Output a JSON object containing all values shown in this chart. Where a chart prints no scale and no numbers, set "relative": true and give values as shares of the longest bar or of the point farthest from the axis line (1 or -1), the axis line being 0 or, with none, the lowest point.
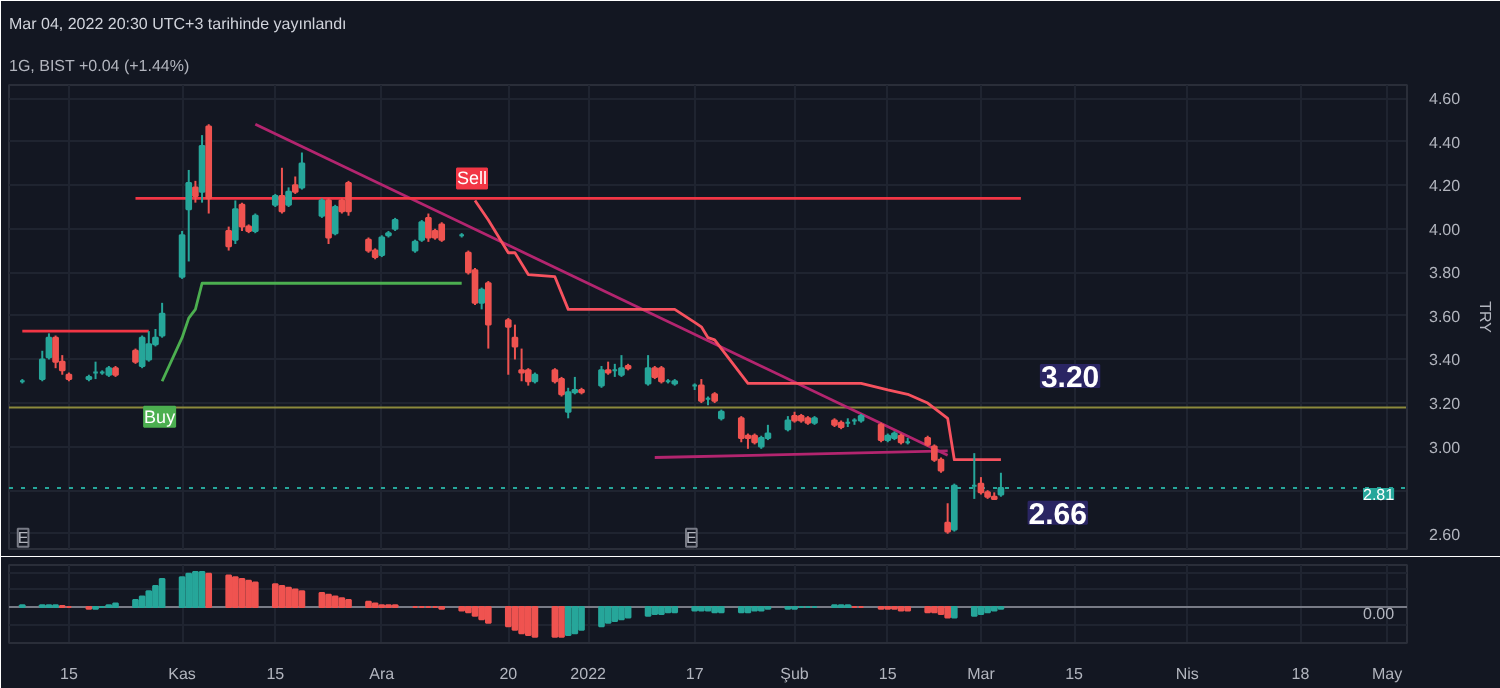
{
  "chart_data": [
    {
      "type": "candlestick",
      "title": "Mar 04, 2022 20:30 UTC+3 tarihinde yayınlandı",
      "subtitle": "1G, BIST +0.04 (+1.44%)",
      "ylabel": "TRY",
      "x": [
        "2021-10-08",
        "2021-10-11",
        "2021-10-12",
        "2021-10-13",
        "2021-10-14",
        "2021-10-15",
        "2021-10-18",
        "2021-10-19",
        "2021-10-20",
        "2021-10-21",
        "2021-10-22",
        "2021-10-25",
        "2021-10-26",
        "2021-10-27",
        "2021-10-28",
        "2021-10-29",
        "2021-11-01",
        "2021-11-02",
        "2021-11-03",
        "2021-11-04",
        "2021-11-05",
        "2021-11-08",
        "2021-11-09",
        "2021-11-10",
        "2021-11-11",
        "2021-11-12",
        "2021-11-15",
        "2021-11-16",
        "2021-11-17",
        "2021-11-18",
        "2021-11-19",
        "2021-11-22",
        "2021-11-23",
        "2021-11-24",
        "2021-11-25",
        "2021-11-26",
        "2021-11-29",
        "2021-11-30",
        "2021-12-01",
        "2021-12-02",
        "2021-12-03",
        "2021-12-06",
        "2021-12-07",
        "2021-12-08",
        "2021-12-09",
        "2021-12-10",
        "2021-12-13",
        "2021-12-14",
        "2021-12-15",
        "2021-12-16",
        "2021-12-17",
        "2021-12-20",
        "2021-12-21",
        "2021-12-22",
        "2021-12-23",
        "2021-12-24",
        "2021-12-27",
        "2021-12-28",
        "2021-12-29",
        "2021-12-30",
        "2021-12-31",
        "2022-01-03",
        "2022-01-04",
        "2022-01-05",
        "2022-01-06",
        "2022-01-07",
        "2022-01-10",
        "2022-01-11",
        "2022-01-12",
        "2022-01-13",
        "2022-01-14",
        "2022-01-17",
        "2022-01-18",
        "2022-01-19",
        "2022-01-20",
        "2022-01-21",
        "2022-01-24",
        "2022-01-25",
        "2022-01-26",
        "2022-01-27",
        "2022-01-28",
        "2022-01-31",
        "2022-02-01",
        "2022-02-02",
        "2022-02-03",
        "2022-02-04",
        "2022-02-07",
        "2022-02-08",
        "2022-02-09",
        "2022-02-10",
        "2022-02-11",
        "2022-02-14",
        "2022-02-15",
        "2022-02-16",
        "2022-02-17",
        "2022-02-18",
        "2022-02-21",
        "2022-02-22",
        "2022-02-23",
        "2022-02-24",
        "2022-02-25",
        "2022-02-28",
        "2022-03-01",
        "2022-03-02",
        "2022-03-03",
        "2022-03-04"
      ],
      "ohlc": [
        [
          3.3,
          3.31,
          3.29,
          3.3
        ],
        [
          3.31,
          3.44,
          3.3,
          3.4
        ],
        [
          3.41,
          3.52,
          3.4,
          3.5
        ],
        [
          3.5,
          3.51,
          3.36,
          3.39
        ],
        [
          3.39,
          3.42,
          3.33,
          3.35
        ],
        [
          3.33,
          3.34,
          3.3,
          3.31
        ],
        [
          3.31,
          3.33,
          3.3,
          3.32
        ],
        [
          3.34,
          3.39,
          3.31,
          3.34
        ],
        [
          3.34,
          3.35,
          3.33,
          3.34
        ],
        [
          3.33,
          3.37,
          3.32,
          3.36
        ],
        [
          3.36,
          3.37,
          3.32,
          3.33
        ],
        [
          3.44,
          3.45,
          3.38,
          3.39
        ],
        [
          3.37,
          3.51,
          3.36,
          3.5
        ],
        [
          3.4,
          3.53,
          3.39,
          3.47
        ],
        [
          3.47,
          3.54,
          3.46,
          3.5
        ],
        [
          3.51,
          3.66,
          3.5,
          3.61
        ],
        [
          3.78,
          3.99,
          3.77,
          3.97
        ],
        [
          4.09,
          4.27,
          3.85,
          4.21
        ],
        [
          4.19,
          4.22,
          4.12,
          4.15
        ],
        [
          4.17,
          4.43,
          4.12,
          4.38
        ],
        [
          4.47,
          4.48,
          4.07,
          4.14
        ],
        [
          3.99,
          4.01,
          3.9,
          3.92
        ],
        [
          3.95,
          4.13,
          3.93,
          4.09
        ],
        [
          4.11,
          4.12,
          3.99,
          4.01
        ],
        [
          4.01,
          4.02,
          3.98,
          3.99
        ],
        [
          3.99,
          4.07,
          3.98,
          4.06
        ],
        [
          4.11,
          4.16,
          4.1,
          4.15
        ],
        [
          4.15,
          4.28,
          4.07,
          4.08
        ],
        [
          4.11,
          4.19,
          4.1,
          4.17
        ],
        [
          4.2,
          4.24,
          4.16,
          4.17
        ],
        [
          4.19,
          4.35,
          4.18,
          4.3
        ],
        [
          4.06,
          4.14,
          4.05,
          4.13
        ],
        [
          4.13,
          4.14,
          3.93,
          3.96
        ],
        [
          3.98,
          4.11,
          3.97,
          4.1
        ],
        [
          4.13,
          4.14,
          4.07,
          4.08
        ],
        [
          4.21,
          4.22,
          4.06,
          4.08
        ],
        [
          3.95,
          3.96,
          3.89,
          3.9
        ],
        [
          3.9,
          3.91,
          3.86,
          3.87
        ],
        [
          3.88,
          3.97,
          3.87,
          3.96
        ],
        [
          3.97,
          3.99,
          3.96,
          3.98
        ],
        [
          4.0,
          4.05,
          3.99,
          4.04
        ],
        [
          3.9,
          3.95,
          3.89,
          3.94
        ],
        [
          3.95,
          4.04,
          3.94,
          4.03
        ],
        [
          4.05,
          4.07,
          3.94,
          3.96
        ],
        [
          3.99,
          4.0,
          3.95,
          3.96
        ],
        [
          4.02,
          4.03,
          3.94,
          3.95
        ],
        [
          3.97,
          3.98,
          3.96,
          3.97
        ],
        [
          3.89,
          3.9,
          3.79,
          3.8
        ],
        [
          3.81,
          3.82,
          3.65,
          3.66
        ],
        [
          3.66,
          3.73,
          3.63,
          3.72
        ],
        [
          3.75,
          3.76,
          3.45,
          3.56
        ],
        [
          3.58,
          3.59,
          3.33,
          3.55
        ],
        [
          3.5,
          3.56,
          3.4,
          3.46
        ],
        [
          3.35,
          3.45,
          3.3,
          3.34
        ],
        [
          3.35,
          3.36,
          3.28,
          3.3
        ],
        [
          3.3,
          3.34,
          3.29,
          3.33
        ],
        [
          3.35,
          3.36,
          3.29,
          3.3
        ],
        [
          3.31,
          3.32,
          3.23,
          3.24
        ],
        [
          3.16,
          3.27,
          3.13,
          3.25
        ],
        [
          3.25,
          3.32,
          3.24,
          3.26
        ],
        [
          3.26,
          3.27,
          3.24,
          3.25
        ],
        [
          3.28,
          3.37,
          3.27,
          3.35
        ],
        [
          3.35,
          3.39,
          3.33,
          3.34
        ],
        [
          3.35,
          3.38,
          3.32,
          3.35
        ],
        [
          3.33,
          3.42,
          3.32,
          3.36
        ],
        [
          3.37,
          3.38,
          3.35,
          3.36
        ],
        [
          3.29,
          3.42,
          3.28,
          3.36
        ],
        [
          3.36,
          3.37,
          3.31,
          3.32
        ],
        [
          3.36,
          3.37,
          3.29,
          3.3
        ],
        [
          3.3,
          3.31,
          3.29,
          3.3
        ],
        [
          3.29,
          3.31,
          3.28,
          3.3
        ],
        [
          3.28,
          3.29,
          3.26,
          3.28
        ],
        [
          3.28,
          3.31,
          3.2,
          3.21
        ],
        [
          3.22,
          3.23,
          3.19,
          3.22
        ],
        [
          3.24,
          3.25,
          3.2,
          3.21
        ],
        [
          3.13,
          3.17,
          3.12,
          3.16
        ],
        [
          3.13,
          3.14,
          3.02,
          3.04
        ],
        [
          3.05,
          3.06,
          2.99,
          3.04
        ],
        [
          3.05,
          3.06,
          3.01,
          3.02
        ],
        [
          3.0,
          3.05,
          2.99,
          3.04
        ],
        [
          3.04,
          3.1,
          3.03,
          3.06
        ],
        [
          3.08,
          3.14,
          3.07,
          3.12
        ],
        [
          3.14,
          3.16,
          3.11,
          3.12
        ],
        [
          3.14,
          3.15,
          3.11,
          3.12
        ],
        [
          3.13,
          3.14,
          3.1,
          3.11
        ],
        [
          3.11,
          3.14,
          3.1,
          3.13
        ],
        [
          3.12,
          3.13,
          3.09,
          3.1
        ],
        [
          3.11,
          3.12,
          3.08,
          3.09
        ],
        [
          3.11,
          3.13,
          3.09,
          3.11
        ],
        [
          3.12,
          3.13,
          3.1,
          3.12
        ],
        [
          3.12,
          3.15,
          3.11,
          3.14
        ],
        [
          3.1,
          3.11,
          3.02,
          3.03
        ],
        [
          3.03,
          3.06,
          3.02,
          3.05
        ],
        [
          3.04,
          3.07,
          3.03,
          3.06
        ],
        [
          3.05,
          3.06,
          3.01,
          3.02
        ],
        [
          3.02,
          3.04,
          3.01,
          3.02
        ],
        [
          3.04,
          3.05,
          3.0,
          3.01
        ],
        [
          3.0,
          3.01,
          2.93,
          2.94
        ],
        [
          2.94,
          2.95,
          2.88,
          2.89
        ],
        [
          2.65,
          2.74,
          2.6,
          2.61
        ],
        [
          2.62,
          2.83,
          2.61,
          2.82
        ],
        [
          2.82,
          2.97,
          2.76,
          2.82
        ],
        [
          2.83,
          2.86,
          2.78,
          2.79
        ],
        [
          2.79,
          2.8,
          2.76,
          2.77
        ],
        [
          2.77,
          2.79,
          2.76,
          2.76
        ],
        [
          2.78,
          2.88,
          2.77,
          2.81
        ]
      ],
      "series": [
        {
          "type": "line",
          "color": "#b3256f",
          "x": [
            "2021-11-12",
            "2022-02-24"
          ],
          "values": [
            4.48,
            2.96
          ]
        },
        {
          "type": "line",
          "color": "#b3256f",
          "x": [
            "2022-01-11",
            "2022-02-24"
          ],
          "values": [
            2.95,
            2.98
          ]
        },
        {
          "type": "line",
          "color": "#f23645",
          "x": [
            "2021-10-25",
            "2022-03-07"
          ],
          "values": [
            4.14,
            4.14
          ]
        },
        {
          "type": "line",
          "color": "#f23645",
          "x": [
            "2021-10-08",
            "2021-10-27"
          ],
          "values": [
            3.53,
            3.53
          ]
        },
        {
          "type": "line",
          "color": "#4caf50",
          "x": [
            "2021-10-29",
            "2021-11-01",
            "2021-11-02",
            "2021-11-03",
            "2021-11-04",
            "2021-12-13"
          ],
          "values": [
            3.3,
            3.5,
            3.59,
            3.63,
            3.75,
            3.75
          ]
        },
        {
          "type": "line",
          "color": "#f7525f",
          "x": [
            "2021-12-15",
            "2021-12-17",
            "2021-12-20",
            "2021-12-21",
            "2021-12-23",
            "2021-12-27",
            "2021-12-29",
            "2022-01-14",
            "2022-01-17",
            "2022-01-18",
            "2022-01-19",
            "2022-01-20",
            "2022-01-25",
            "2022-02-11",
            "2022-02-15",
            "2022-02-18",
            "2022-02-21",
            "2022-02-24",
            "2022-02-25",
            "2022-03-04"
          ],
          "values": [
            4.13,
            4.04,
            3.89,
            3.89,
            3.79,
            3.78,
            3.63,
            3.63,
            3.57,
            3.55,
            3.5,
            3.49,
            3.29,
            3.29,
            3.26,
            3.24,
            3.2,
            3.13,
            2.94,
            2.94
          ]
        }
      ],
      "ref_lines": [
        {
          "axis": "y",
          "value": 3.18,
          "color": "#8c8a3c"
        },
        {
          "axis": "y",
          "value": 2.81,
          "label": "2.81",
          "color": "#26a69a",
          "line_style": "dotted"
        }
      ],
      "annotations": [
        "E",
        "E",
        {
          "text": "Buy",
          "x": "2021-10-29",
          "y": 3.22
        },
        {
          "text": "Sell",
          "x": "2021-12-15",
          "y": 4.13
        },
        {
          "text": "3.20",
          "x": "2022-03-07",
          "y": 3.2
        },
        "2.66"
      ],
      "xlim": [
        "2021-10-06",
        "2022-05-04"
      ],
      "ylim": [
        2.53,
        4.66
      ],
      "xticks": [
        {
          "value": "2021-10-15",
          "label": null
        },
        {
          "value": "2021-11-01",
          "label": null
        },
        {
          "value": "2021-11-15",
          "label": null
        },
        {
          "value": "2021-12-01",
          "label": null
        },
        {
          "value": "2021-12-20",
          "label": null
        },
        {
          "value": "2022-01-01",
          "label": null
        },
        {
          "value": "2022-01-17",
          "label": null
        },
        {
          "value": "2022-02-01",
          "label": null
        },
        {
          "value": "2022-02-15",
          "label": null
        },
        {
          "value": "2022-03-01",
          "label": null
        },
        {
          "value": "2022-03-15",
          "label": null
        },
        {
          "value": "2022-04-01",
          "label": null
        },
        {
          "value": "2022-04-18",
          "label": null
        },
        {
          "value": "2022-05-01",
          "label": null
        }
      ],
      "yticks": [
        {
          "value": 2.6,
          "label": "2.60"
        },
        {
          "value": 2.8,
          "label": null
        },
        {
          "value": 3.0,
          "label": "3.00"
        },
        {
          "value": 3.2,
          "label": "3.20"
        },
        {
          "value": 3.4,
          "label": "3.40"
        },
        {
          "value": 3.6,
          "label": "3.60"
        },
        {
          "value": 3.8,
          "label": "3.80"
        },
        {
          "value": 4.0,
          "label": "4.00"
        },
        {
          "value": 4.2,
          "label": "4.20"
        },
        {
          "value": 4.4,
          "label": "4.40"
        },
        {
          "value": 4.6,
          "label": "4.60"
        }
      ],
      "tick_labels": "y",
      "grid": true
    },
    {
      "type": "bar",
      "relative": true,
      "x": [
        "2021-10-08",
        "2021-10-11",
        "2021-10-12",
        "2021-10-13",
        "2021-10-14",
        "2021-10-15",
        "2021-10-18",
        "2021-10-19",
        "2021-10-20",
        "2021-10-21",
        "2021-10-22",
        "2021-10-25",
        "2021-10-26",
        "2021-10-27",
        "2021-10-28",
        "2021-10-29",
        "2021-11-01",
        "2021-11-02",
        "2021-11-03",
        "2021-11-04",
        "2021-11-05",
        "2021-11-08",
        "2021-11-09",
        "2021-11-10",
        "2021-11-11",
        "2021-11-12",
        "2021-11-15",
        "2021-11-16",
        "2021-11-17",
        "2021-11-18",
        "2021-11-19",
        "2021-11-22",
        "2021-11-23",
        "2021-11-24",
        "2021-11-25",
        "2021-11-26",
        "2021-11-29",
        "2021-11-30",
        "2021-12-01",
        "2021-12-02",
        "2021-12-03",
        "2021-12-06",
        "2021-12-07",
        "2021-12-08",
        "2021-12-09",
        "2021-12-10",
        "2021-12-13",
        "2021-12-14",
        "2021-12-15",
        "2021-12-16",
        "2021-12-17",
        "2021-12-20",
        "2021-12-21",
        "2021-12-22",
        "2021-12-23",
        "2021-12-24",
        "2021-12-27",
        "2021-12-28",
        "2021-12-29",
        "2021-12-30",
        "2021-12-31",
        "2022-01-03",
        "2022-01-04",
        "2022-01-05",
        "2022-01-06",
        "2022-01-07",
        "2022-01-10",
        "2022-01-11",
        "2022-01-12",
        "2022-01-13",
        "2022-01-14",
        "2022-01-17",
        "2022-01-18",
        "2022-01-19",
        "2022-01-20",
        "2022-01-21",
        "2022-01-24",
        "2022-01-25",
        "2022-01-26",
        "2022-01-27",
        "2022-01-28",
        "2022-01-31",
        "2022-02-01",
        "2022-02-02",
        "2022-02-03",
        "2022-02-04",
        "2022-02-07",
        "2022-02-08",
        "2022-02-09",
        "2022-02-10",
        "2022-02-11",
        "2022-02-14",
        "2022-02-15",
        "2022-02-16",
        "2022-02-17",
        "2022-02-18",
        "2022-02-21",
        "2022-02-22",
        "2022-02-23",
        "2022-02-24",
        "2022-02-25",
        "2022-02-28",
        "2022-03-01",
        "2022-03-02",
        "2022-03-03",
        "2022-03-04"
      ],
      "values": [
        0.05,
        0.05,
        0.05,
        0.05,
        0.03,
        0,
        -0.05,
        -0.05,
        0,
        0.05,
        0.1,
        0.2,
        0.3,
        0.45,
        0.6,
        0.8,
        0.85,
        0.95,
        1.0,
        1.0,
        0.95,
        0.9,
        0.85,
        0.8,
        0.75,
        0.7,
        0.65,
        0.6,
        0.55,
        0.5,
        0.45,
        0.4,
        0.35,
        0.3,
        0.25,
        0.2,
        0.15,
        0.1,
        0.05,
        0.05,
        0.05,
        0,
        0,
        0,
        0,
        -0.05,
        -0.1,
        -0.15,
        -0.25,
        -0.35,
        -0.45,
        -0.55,
        -0.65,
        -0.75,
        -0.8,
        -0.85,
        -0.85,
        -0.85,
        -0.8,
        -0.75,
        -0.65,
        -0.55,
        -0.45,
        -0.4,
        -0.35,
        -0.3,
        -0.25,
        -0.2,
        -0.2,
        -0.15,
        -0.15,
        -0.1,
        -0.1,
        -0.1,
        -0.15,
        -0.15,
        -0.15,
        -0.15,
        -0.1,
        -0.1,
        -0.05,
        -0.05,
        -0.05,
        0,
        0,
        0,
        0.05,
        0.05,
        0.05,
        0,
        0,
        -0.05,
        -0.05,
        -0.05,
        -0.1,
        -0.1,
        -0.15,
        -0.15,
        -0.2,
        -0.3,
        -0.3,
        -0.25,
        -0.2,
        -0.15,
        -0.1,
        -0.05
      ],
      "colors": [
        "#26a69a",
        "#26a69a",
        "#26a69a",
        "#26a69a",
        "#ef5350",
        "#ef5350",
        "#ef5350",
        "#26a69a",
        "#26a69a",
        "#26a69a",
        "#26a69a",
        "#26a69a",
        "#26a69a",
        "#26a69a",
        "#26a69a",
        "#26a69a",
        "#26a69a",
        "#26a69a",
        "#26a69a",
        "#26a69a",
        "#ef5350",
        "#ef5350",
        "#ef5350",
        "#ef5350",
        "#ef5350",
        "#ef5350",
        "#ef5350",
        "#ef5350",
        "#ef5350",
        "#ef5350",
        "#ef5350",
        "#ef5350",
        "#ef5350",
        "#ef5350",
        "#ef5350",
        "#ef5350",
        "#ef5350",
        "#ef5350",
        "#ef5350",
        "#ef5350",
        "#ef5350",
        "#ef5350",
        "#ef5350",
        "#ef5350",
        "#ef5350",
        "#ef5350",
        "#ef5350",
        "#ef5350",
        "#ef5350",
        "#ef5350",
        "#ef5350",
        "#ef5350",
        "#ef5350",
        "#ef5350",
        "#ef5350",
        "#ef5350",
        "#ef5350",
        "#ef5350",
        "#26a69a",
        "#26a69a",
        "#26a69a",
        "#26a69a",
        "#26a69a",
        "#26a69a",
        "#26a69a",
        "#26a69a",
        "#26a69a",
        "#26a69a",
        "#26a69a",
        "#26a69a",
        "#26a69a",
        "#26a69a",
        "#26a69a",
        "#26a69a",
        "#26a69a",
        "#26a69a",
        "#26a69a",
        "#26a69a",
        "#26a69a",
        "#26a69a",
        "#26a69a",
        "#26a69a",
        "#26a69a",
        "#26a69a",
        "#26a69a",
        "#26a69a",
        "#26a69a",
        "#26a69a",
        "#26a69a",
        "#ef5350",
        "#ef5350",
        "#ef5350",
        "#ef5350",
        "#ef5350",
        "#ef5350",
        "#ef5350",
        "#ef5350",
        "#ef5350",
        "#ef5350",
        "#ef5350",
        "#26a69a",
        "#26a69a",
        "#26a69a",
        "#26a69a",
        "#26a69a",
        "#26a69a"
      ],
      "ref_lines": [
        {
          "axis": "y",
          "value": 0,
          "label": "0.00"
        }
      ],
      "xlim": [
        "2021-10-06",
        "2022-05-04"
      ],
      "xticks": [
        {
          "value": "2021-10-15",
          "label": "15"
        },
        {
          "value": "2021-11-01",
          "label": "Kas"
        },
        {
          "value": "2021-11-15",
          "label": "15"
        },
        {
          "value": "2021-12-01",
          "label": "Ara"
        },
        {
          "value": "2021-12-20",
          "label": "20"
        },
        {
          "value": "2022-01-01",
          "label": "2022"
        },
        {
          "value": "2022-01-17",
          "label": "17"
        },
        {
          "value": "2022-02-01",
          "label": "Şub"
        },
        {
          "value": "2022-02-15",
          "label": "15"
        },
        {
          "value": "2022-03-01",
          "label": "Mar"
        },
        {
          "value": "2022-03-15",
          "label": "15"
        },
        {
          "value": "2022-04-01",
          "label": "Nis"
        },
        {
          "value": "2022-04-18",
          "label": "18"
        },
        {
          "value": "2022-05-01",
          "label": "May"
        }
      ],
      "tick_labels": "x",
      "grid": true
    }
  ]
}
